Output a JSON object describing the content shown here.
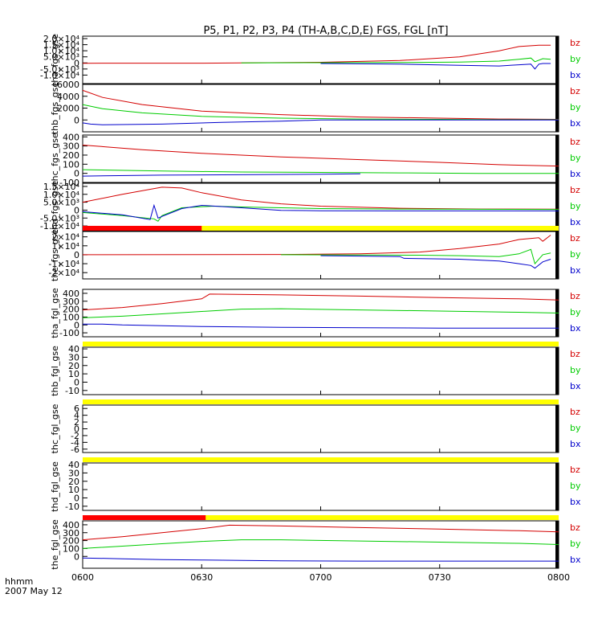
{
  "chart_data": {
    "type": "line",
    "title": "P5, P1, P2, P3, P4 (TH-A,B,C,D,E) FGS, FGL [nT]",
    "x_ticks": [
      "0600",
      "0630",
      "0700",
      "0730",
      "0800"
    ],
    "x_range_minutes": [
      0,
      120
    ],
    "xlabel_line1": "hhmm",
    "xlabel_line2": "2007 May 12",
    "legend": [
      {
        "name": "bz",
        "color": "#d40000"
      },
      {
        "name": "by",
        "color": "#00cc00"
      },
      {
        "name": "bx",
        "color": "#0000cc"
      }
    ],
    "panels": [
      {
        "ylabel": "tha_fgs_gse",
        "ylim": [
          -17000,
          22000
        ],
        "yticks": [
          {
            "v": 20000,
            "t": "2.0×10⁴"
          },
          {
            "v": 15000,
            "t": "1.5×10⁴"
          },
          {
            "v": 10000,
            "t": "1.0×10⁴"
          },
          {
            "v": 5000,
            "t": "5.0×10³"
          },
          {
            "v": 0,
            "t": "0"
          },
          {
            "v": -5000,
            "t": "-5.0×10³"
          },
          {
            "v": -10000,
            "t": "-1.0×10⁴"
          }
        ],
        "series": [
          {
            "name": "bz",
            "x": [
              0,
              30,
              60,
              80,
              95,
              105,
              110,
              115,
              118
            ],
            "y": [
              -300,
              -200,
              500,
              2000,
              5000,
              10000,
              13500,
              14500,
              14500
            ]
          },
          {
            "name": "by",
            "x": [
              40,
              60,
              80,
              95,
              105,
              110,
              113,
              114,
              116,
              118
            ],
            "y": [
              0,
              200,
              300,
              700,
              1500,
              3000,
              4000,
              1000,
              3500,
              3000
            ]
          },
          {
            "name": "bx",
            "x": [
              60,
              80,
              95,
              105,
              110,
              113,
              114,
              115,
              116,
              118
            ],
            "y": [
              -500,
              -1000,
              -2000,
              -2500,
              -1500,
              -1000,
              -5000,
              -1000,
              -500,
              -500
            ]
          }
        ],
        "bar": null
      },
      {
        "ylabel": "thb_fgs_gse",
        "ylim": [
          -2000,
          6000
        ],
        "yticks": [
          {
            "v": 6000,
            "t": "6000"
          },
          {
            "v": 4000,
            "t": "4000"
          },
          {
            "v": 2000,
            "t": "2000"
          },
          {
            "v": 0,
            "t": "0"
          }
        ],
        "series": [
          {
            "name": "bz",
            "x": [
              0,
              5,
              15,
              30,
              50,
              70,
              90,
              105,
              120
            ],
            "y": [
              5000,
              3800,
              2600,
              1500,
              900,
              500,
              300,
              150,
              100
            ]
          },
          {
            "name": "by",
            "x": [
              0,
              5,
              15,
              30,
              50,
              70,
              90,
              105,
              120
            ],
            "y": [
              2600,
              1900,
              1200,
              600,
              300,
              150,
              100,
              50,
              50
            ]
          },
          {
            "name": "bx",
            "x": [
              0,
              2,
              5,
              20,
              35,
              50,
              55,
              60,
              90,
              120
            ],
            "y": [
              -500,
              -700,
              -800,
              -700,
              -400,
              -200,
              -100,
              0,
              0,
              0
            ]
          }
        ],
        "bar": null
      },
      {
        "ylabel": "thc_fgs_gse",
        "ylim": [
          -100,
          420
        ],
        "yticks": [
          {
            "v": 400,
            "t": "400"
          },
          {
            "v": 300,
            "t": "300"
          },
          {
            "v": 200,
            "t": "200"
          },
          {
            "v": 100,
            "t": "100"
          },
          {
            "v": 0,
            "t": "0"
          },
          {
            "v": -100,
            "t": "-100"
          }
        ],
        "series": [
          {
            "name": "bz",
            "x": [
              0,
              15,
              30,
              50,
              70,
              90,
              105,
              120
            ],
            "y": [
              310,
              260,
              220,
              180,
              150,
              120,
              95,
              80
            ]
          },
          {
            "name": "by",
            "x": [
              0,
              20,
              40,
              60,
              80,
              100,
              120
            ],
            "y": [
              40,
              25,
              15,
              10,
              5,
              0,
              0
            ]
          },
          {
            "name": "bx",
            "x": [
              0,
              20,
              40,
              60,
              70
            ],
            "y": [
              -30,
              -20,
              -15,
              -10,
              -5
            ]
          }
        ],
        "bar": null
      },
      {
        "ylabel": "thd_fgs_gse",
        "ylim": [
          -13000,
          17000
        ],
        "yticks": [
          {
            "v": 15000,
            "t": "1.5×10⁴"
          },
          {
            "v": 10000,
            "t": "1.0×10⁴"
          },
          {
            "v": 5000,
            "t": "5.0×10³"
          },
          {
            "v": 0,
            "t": "0"
          },
          {
            "v": -5000,
            "t": "-5.0×10³"
          },
          {
            "v": -10000,
            "t": "-1.0×10⁴"
          }
        ],
        "series": [
          {
            "name": "bz",
            "x": [
              0,
              10,
              20,
              25,
              30,
              40,
              50,
              60,
              80,
              100,
              120
            ],
            "y": [
              5000,
              10000,
              14500,
              14000,
              11000,
              6500,
              4000,
              2500,
              1200,
              700,
              600
            ]
          },
          {
            "name": "by",
            "x": [
              0,
              10,
              18,
              19,
              20,
              25,
              33,
              40,
              50,
              60,
              80,
              100,
              120
            ],
            "y": [
              -1500,
              -3500,
              -5500,
              -7000,
              -3500,
              1500,
              2500,
              2000,
              1500,
              1000,
              700,
              500,
              400
            ]
          },
          {
            "name": "bx",
            "x": [
              0,
              10,
              17,
              18,
              19,
              20,
              25,
              30,
              40,
              50,
              60,
              80,
              100,
              120
            ],
            "y": [
              -1000,
              -3000,
              -6000,
              3000,
              -5000,
              -4000,
              1000,
              3000,
              1500,
              -200,
              -400,
              -500,
              -500,
              -500
            ]
          }
        ],
        "bar": null
      },
      {
        "ylabel": "the_fgs_gse",
        "ylim": [
          -27000,
          26000
        ],
        "yticks": [
          {
            "v": 20000,
            "t": "2×10⁴"
          },
          {
            "v": 10000,
            "t": "1×10⁴"
          },
          {
            "v": 0,
            "t": "0"
          },
          {
            "v": -10000,
            "t": "-1×10⁴"
          },
          {
            "v": -20000,
            "t": "-2×10⁴"
          }
        ],
        "series": [
          {
            "name": "bz",
            "x": [
              0,
              50,
              70,
              85,
              95,
              105,
              110,
              115,
              116,
              118
            ],
            "y": [
              0,
              300,
              1000,
              3000,
              7000,
              12000,
              17000,
              19000,
              15000,
              22000
            ]
          },
          {
            "name": "by",
            "x": [
              50,
              70,
              85,
              95,
              105,
              110,
              113,
              114,
              116,
              118
            ],
            "y": [
              0,
              -200,
              -500,
              -1000,
              -2000,
              1000,
              6000,
              -10000,
              0,
              2000
            ]
          },
          {
            "name": "bx",
            "x": [
              60,
              70,
              80,
              81,
              95,
              105,
              110,
              113,
              114,
              116,
              118
            ],
            "y": [
              -1000,
              -1500,
              -2000,
              -4000,
              -5000,
              -7000,
              -10000,
              -12000,
              -15000,
              -8000,
              -5000
            ]
          }
        ],
        "bar": {
          "red_to_minutes": 30
        }
      },
      {
        "ylabel": "tha_fgl_gse",
        "ylim": [
          -150,
          450
        ],
        "yticks": [
          {
            "v": 400,
            "t": "400"
          },
          {
            "v": 300,
            "t": "300"
          },
          {
            "v": 200,
            "t": "200"
          },
          {
            "v": 100,
            "t": "100"
          },
          {
            "v": 0,
            "t": "0"
          },
          {
            "v": -100,
            "t": "-100"
          }
        ],
        "series": [
          {
            "name": "bz",
            "x": [
              0,
              10,
              20,
              30,
              32,
              50,
              70,
              90,
              110,
              120
            ],
            "y": [
              190,
              220,
              270,
              330,
              390,
              380,
              365,
              345,
              330,
              315
            ]
          },
          {
            "name": "by",
            "x": [
              0,
              10,
              20,
              30,
              40,
              50,
              70,
              90,
              110,
              120
            ],
            "y": [
              90,
              110,
              140,
              170,
              200,
              205,
              190,
              175,
              160,
              150
            ]
          },
          {
            "name": "bx",
            "x": [
              0,
              5,
              10,
              20,
              30,
              50,
              70,
              90,
              110,
              120
            ],
            "y": [
              10,
              10,
              0,
              -10,
              -20,
              -30,
              -35,
              -40,
              -40,
              -40
            ]
          }
        ],
        "bar": null
      },
      {
        "ylabel": "thb_fgl_gse",
        "ylim": [
          -15,
          42
        ],
        "yticks": [
          {
            "v": 40,
            "t": "40"
          },
          {
            "v": 30,
            "t": "30"
          },
          {
            "v": 20,
            "t": "20"
          },
          {
            "v": 10,
            "t": "10"
          },
          {
            "v": 0,
            "t": "0"
          },
          {
            "v": -10,
            "t": "-10"
          }
        ],
        "series": [],
        "bar": {
          "red_to_minutes": 0
        }
      },
      {
        "ylabel": "thc_fgl_gse",
        "ylim": [
          -7,
          7
        ],
        "yticks": [
          {
            "v": 6,
            "t": "6"
          },
          {
            "v": 4,
            "t": "4"
          },
          {
            "v": 2,
            "t": "2"
          },
          {
            "v": 0,
            "t": "0"
          },
          {
            "v": -2,
            "t": "-2"
          },
          {
            "v": -4,
            "t": "-4"
          },
          {
            "v": -6,
            "t": "-6"
          }
        ],
        "series": [],
        "bar": {
          "red_to_minutes": 0
        }
      },
      {
        "ylabel": "thd_fgl_gse",
        "ylim": [
          -15,
          42
        ],
        "yticks": [
          {
            "v": 40,
            "t": "40"
          },
          {
            "v": 30,
            "t": "30"
          },
          {
            "v": 20,
            "t": "20"
          },
          {
            "v": 10,
            "t": "10"
          },
          {
            "v": 0,
            "t": "0"
          },
          {
            "v": -10,
            "t": "-10"
          }
        ],
        "series": [],
        "bar": {
          "red_to_minutes": 0
        }
      },
      {
        "ylabel": "the_fgl_gse",
        "ylim": [
          -150,
          450
        ],
        "yticks": [
          {
            "v": 400,
            "t": "400"
          },
          {
            "v": 300,
            "t": "300"
          },
          {
            "v": 200,
            "t": "200"
          },
          {
            "v": 100,
            "t": "100"
          },
          {
            "v": 0,
            "t": "0"
          }
        ],
        "series": [
          {
            "name": "bz",
            "x": [
              0,
              10,
              20,
              30,
              37,
              50,
              70,
              90,
              110,
              120
            ],
            "y": [
              210,
              250,
              300,
              350,
              395,
              385,
              365,
              345,
              325,
              310
            ]
          },
          {
            "name": "by",
            "x": [
              0,
              10,
              20,
              30,
              40,
              50,
              70,
              90,
              110,
              120
            ],
            "y": [
              100,
              130,
              160,
              190,
              210,
              210,
              195,
              180,
              165,
              150
            ]
          },
          {
            "name": "bx",
            "x": [
              0,
              10,
              20,
              30,
              40,
              50,
              70,
              90,
              110,
              120
            ],
            "y": [
              -20,
              -30,
              -40,
              -45,
              -50,
              -55,
              -60,
              -60,
              -60,
              -60
            ]
          }
        ],
        "bar": {
          "red_to_minutes": 31
        }
      }
    ]
  }
}
